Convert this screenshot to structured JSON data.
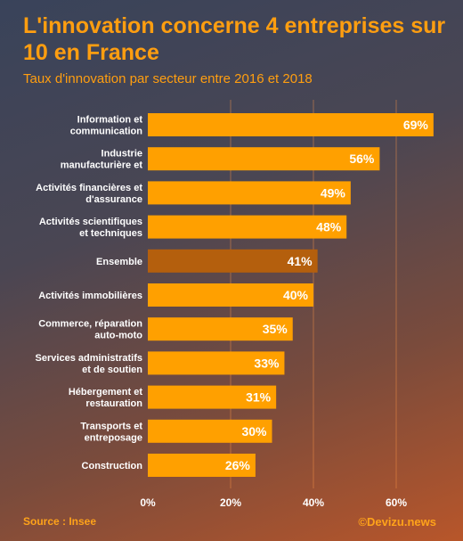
{
  "title": "L'innovation concerne 4 entreprises sur 10 en France",
  "subtitle": "Taux d'innovation par secteur entre 2016 et 2018",
  "footer": {
    "source": "Source : Insee",
    "credit": "©Devizu.news"
  },
  "colors": {
    "bar": "#ffa000",
    "highlight": "#b45f0d",
    "title": "#ff9e10"
  },
  "chart_data": {
    "type": "bar",
    "orientation": "horizontal",
    "categories": [
      [
        "Information et",
        "communication"
      ],
      [
        "Industrie",
        "manufacturière et"
      ],
      [
        "Activités financières et",
        "d'assurance"
      ],
      [
        "Activités scientifiques",
        "et techniques"
      ],
      [
        "Ensemble"
      ],
      [
        "Activités immobilières"
      ],
      [
        "Commerce, réparation",
        "auto-moto"
      ],
      [
        "Services administratifs",
        "et de soutien"
      ],
      [
        "Hébergement et",
        "restauration"
      ],
      [
        "Transports et",
        "entreposage"
      ],
      [
        "Construction"
      ]
    ],
    "values": [
      69,
      56,
      49,
      48,
      41,
      40,
      35,
      33,
      31,
      30,
      26
    ],
    "value_labels": [
      "69%",
      "56%",
      "49%",
      "48%",
      "41%",
      "40%",
      "35%",
      "33%",
      "31%",
      "30%",
      "26%"
    ],
    "highlight_category": "Ensemble",
    "xlim": [
      0,
      70
    ],
    "xticks": [
      0,
      20,
      40,
      60
    ],
    "xtick_labels": [
      "0%",
      "20%",
      "40%",
      "60%"
    ],
    "grid": true
  }
}
